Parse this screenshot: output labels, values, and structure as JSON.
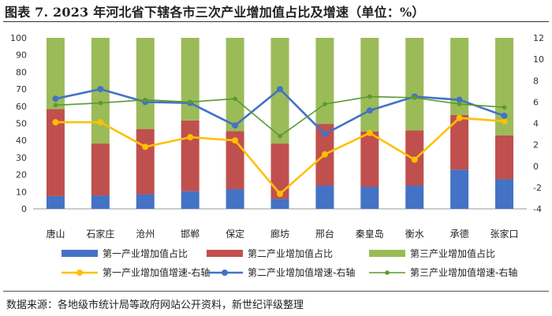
{
  "title": "图表 7.  2023 年河北省下辖各市三次产业增加值占比及增速（单位：%）",
  "source": "数据来源：各地级市统计局等政府网站公开资料，新世纪评级整理",
  "chart_data": {
    "type": "bar",
    "stacked": true,
    "categories": [
      "唐山",
      "石家庄",
      "沧州",
      "邯郸",
      "保定",
      "廊坊",
      "邢台",
      "秦皇岛",
      "衡水",
      "承德",
      "张家口"
    ],
    "y_left": {
      "min": 0,
      "max": 100,
      "ticks": [
        0,
        10,
        20,
        30,
        40,
        50,
        60,
        70,
        80,
        90,
        100
      ]
    },
    "y_right": {
      "min": -4,
      "max": 12,
      "ticks": [
        -4,
        -2,
        0,
        2,
        4,
        6,
        8,
        10,
        12
      ]
    },
    "grid": false,
    "legend_position": "bottom",
    "bar_series": [
      {
        "name": "第一产业增加值占比",
        "color": "#4472C4",
        "values": [
          7.4,
          7.8,
          8.5,
          10.3,
          11.5,
          5.8,
          13.6,
          12.9,
          13.6,
          22.9,
          17.3
        ]
      },
      {
        "name": "第二产业增加值占比",
        "color": "#C0504D",
        "values": [
          51.0,
          30.4,
          38.2,
          41.4,
          34.0,
          32.4,
          36.1,
          32.3,
          32.3,
          32.0,
          25.7
        ]
      },
      {
        "name": "第三产业增加值占比",
        "color": "#9BBB59",
        "values": [
          41.6,
          61.8,
          53.3,
          48.3,
          54.5,
          61.8,
          50.3,
          54.8,
          54.1,
          45.1,
          57.0
        ]
      }
    ],
    "line_series": [
      {
        "name": "第一产业增加值增速-右轴",
        "color": "#FFC000",
        "values": [
          4.1,
          4.1,
          1.8,
          2.7,
          2.4,
          -2.6,
          1.1,
          3.1,
          0.6,
          4.5,
          4.2
        ]
      },
      {
        "name": "第二产业增加值增速-右轴",
        "color": "#4472C4",
        "values": [
          6.3,
          7.2,
          6.0,
          5.9,
          3.8,
          7.2,
          3.0,
          5.2,
          6.5,
          6.2,
          4.7
        ]
      },
      {
        "name": "第三产业增加值增速-右轴",
        "color": "#5A9A2F",
        "values": [
          5.7,
          5.9,
          6.2,
          6.0,
          6.3,
          2.8,
          5.8,
          6.5,
          6.4,
          5.8,
          5.5
        ]
      }
    ]
  }
}
